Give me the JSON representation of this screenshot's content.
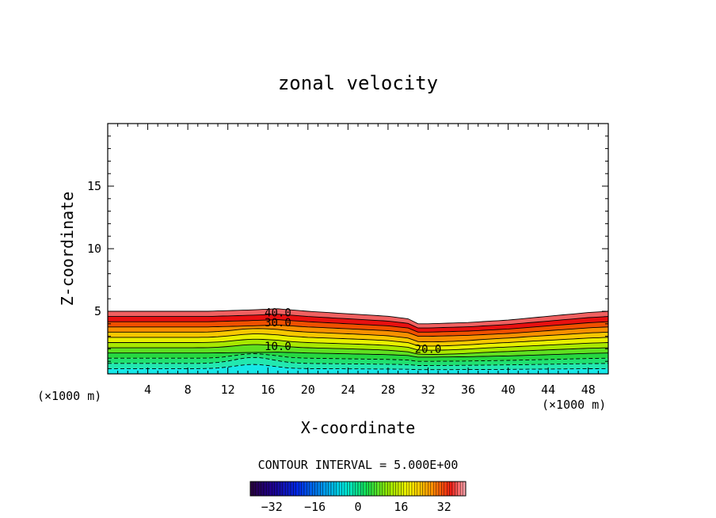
{
  "chart_data": {
    "type": "heatmap",
    "subtype": "filled-contour",
    "title": "zonal velocity",
    "xlabel": "X-coordinate",
    "ylabel": "Z-coordinate",
    "x_units_left": "(×1000 m)",
    "x_units_right": "(×1000 m)",
    "xlim": [
      0,
      50
    ],
    "ylim": [
      0,
      20
    ],
    "x_ticks": [
      4,
      8,
      12,
      16,
      20,
      24,
      28,
      32,
      36,
      40,
      44,
      48
    ],
    "y_ticks": [
      5,
      10,
      15
    ],
    "contour_interval_text": "CONTOUR INTERVAL = 5.000E+00",
    "contour_labels": [
      {
        "text": "40.0",
        "x": 17.0,
        "z": 4.9
      },
      {
        "text": "30.0",
        "x": 17.0,
        "z": 4.1
      },
      {
        "text": "10.0",
        "x": 17.0,
        "z": 2.2
      },
      {
        "text": "20.0",
        "x": 32.0,
        "z": 2.0
      }
    ],
    "field_top": {
      "x": [
        0,
        6,
        10,
        14,
        17,
        20,
        24,
        28,
        30,
        31,
        32,
        36,
        40,
        44,
        48,
        50
      ],
      "z": [
        5.0,
        5.0,
        5.0,
        5.1,
        5.2,
        5.0,
        4.8,
        4.6,
        4.4,
        4.0,
        4.0,
        4.1,
        4.3,
        4.6,
        4.9,
        5.0
      ]
    },
    "level_values": [
      -15,
      -10,
      -5,
      0,
      5,
      10,
      15,
      20,
      25,
      30,
      35,
      40
    ],
    "level_colors": [
      "#16e8e8",
      "#22e8b0",
      "#20e070",
      "#26d840",
      "#60e020",
      "#a8e800",
      "#e8f000",
      "#f8c800",
      "#f89000",
      "#f05000",
      "#e81010",
      "#f06060"
    ],
    "colorbar": {
      "vmin": -40,
      "vmax": 40,
      "ticks": [
        -32,
        -16,
        0,
        16,
        32
      ],
      "tick_labels": [
        "−32",
        "−16",
        "0",
        "16",
        "32"
      ]
    }
  }
}
